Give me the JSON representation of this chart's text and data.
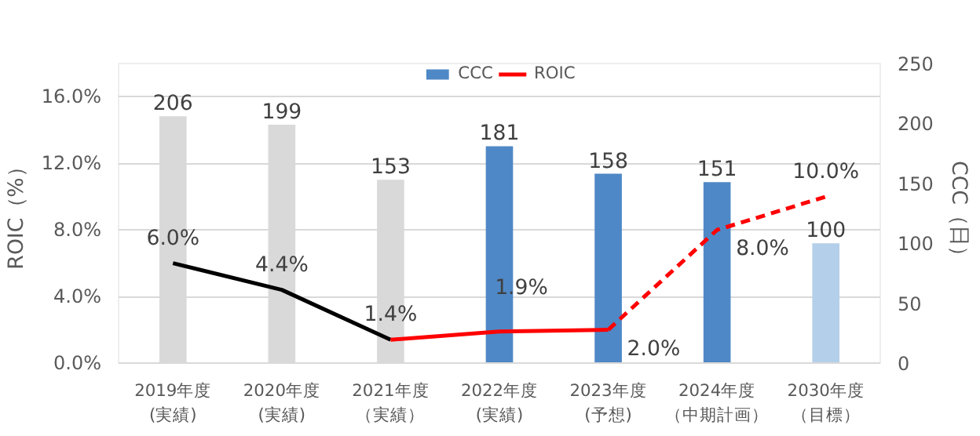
{
  "chart_data": {
    "type": "bar",
    "categories": [
      "2019年度(実績)",
      "2020年度(実績)",
      "2021年度（実績）",
      "2022年度(実績)",
      "2023年度(予想)",
      "2024年度（中期計画）",
      "2030年度（目標）"
    ],
    "ylabel": "ROIC（%）",
    "y2label": "CCC（日）",
    "ylim": [
      0,
      18
    ],
    "yticks": [
      {
        "value": 0,
        "label": "0.0%"
      },
      {
        "value": 4,
        "label": "4.0%"
      },
      {
        "value": 8,
        "label": "8.0%"
      },
      {
        "value": 12,
        "label": "12.0%"
      },
      {
        "value": 16,
        "label": "16.0%"
      }
    ],
    "y2lim": [
      0,
      250
    ],
    "y2ticks": [
      0,
      50,
      100,
      150,
      200,
      250
    ],
    "grid": "y",
    "legend": "top",
    "series": [
      {
        "name": "CCC",
        "axis": "y2",
        "color": "#4f88c6",
        "colors": [
          "#d9d9d9",
          "#d9d9d9",
          "#d9d9d9",
          "#4f88c6",
          "#4f88c6",
          "#4f88c6",
          "#b4cfe9"
        ],
        "values": [
          206,
          199,
          153,
          181,
          158,
          151,
          100
        ],
        "value_labels": [
          "206",
          "199",
          "153",
          "181",
          "158",
          "151",
          "100"
        ]
      },
      {
        "type": "line",
        "color": "#000000",
        "line_style": "solid",
        "values": [
          6.0,
          4.4,
          1.4,
          null,
          null,
          null,
          null
        ],
        "value_labels": [
          "6.0%",
          "4.4%",
          "1.4%",
          null,
          null,
          null,
          null
        ]
      },
      {
        "name": "ROIC",
        "type": "line",
        "color": "#ff0000",
        "line_style": "solid",
        "values": [
          null,
          null,
          1.4,
          1.9,
          2.0,
          null,
          null
        ],
        "value_labels": [
          null,
          null,
          null,
          "1.9%",
          "2.0%",
          null,
          null
        ]
      },
      {
        "type": "line",
        "color": "#ff0000",
        "line_style": "dashed",
        "values": [
          null,
          null,
          null,
          null,
          2.0,
          8.0,
          10.0
        ],
        "value_labels": [
          null,
          null,
          null,
          null,
          null,
          "8.0%",
          "10.0%"
        ]
      }
    ]
  }
}
